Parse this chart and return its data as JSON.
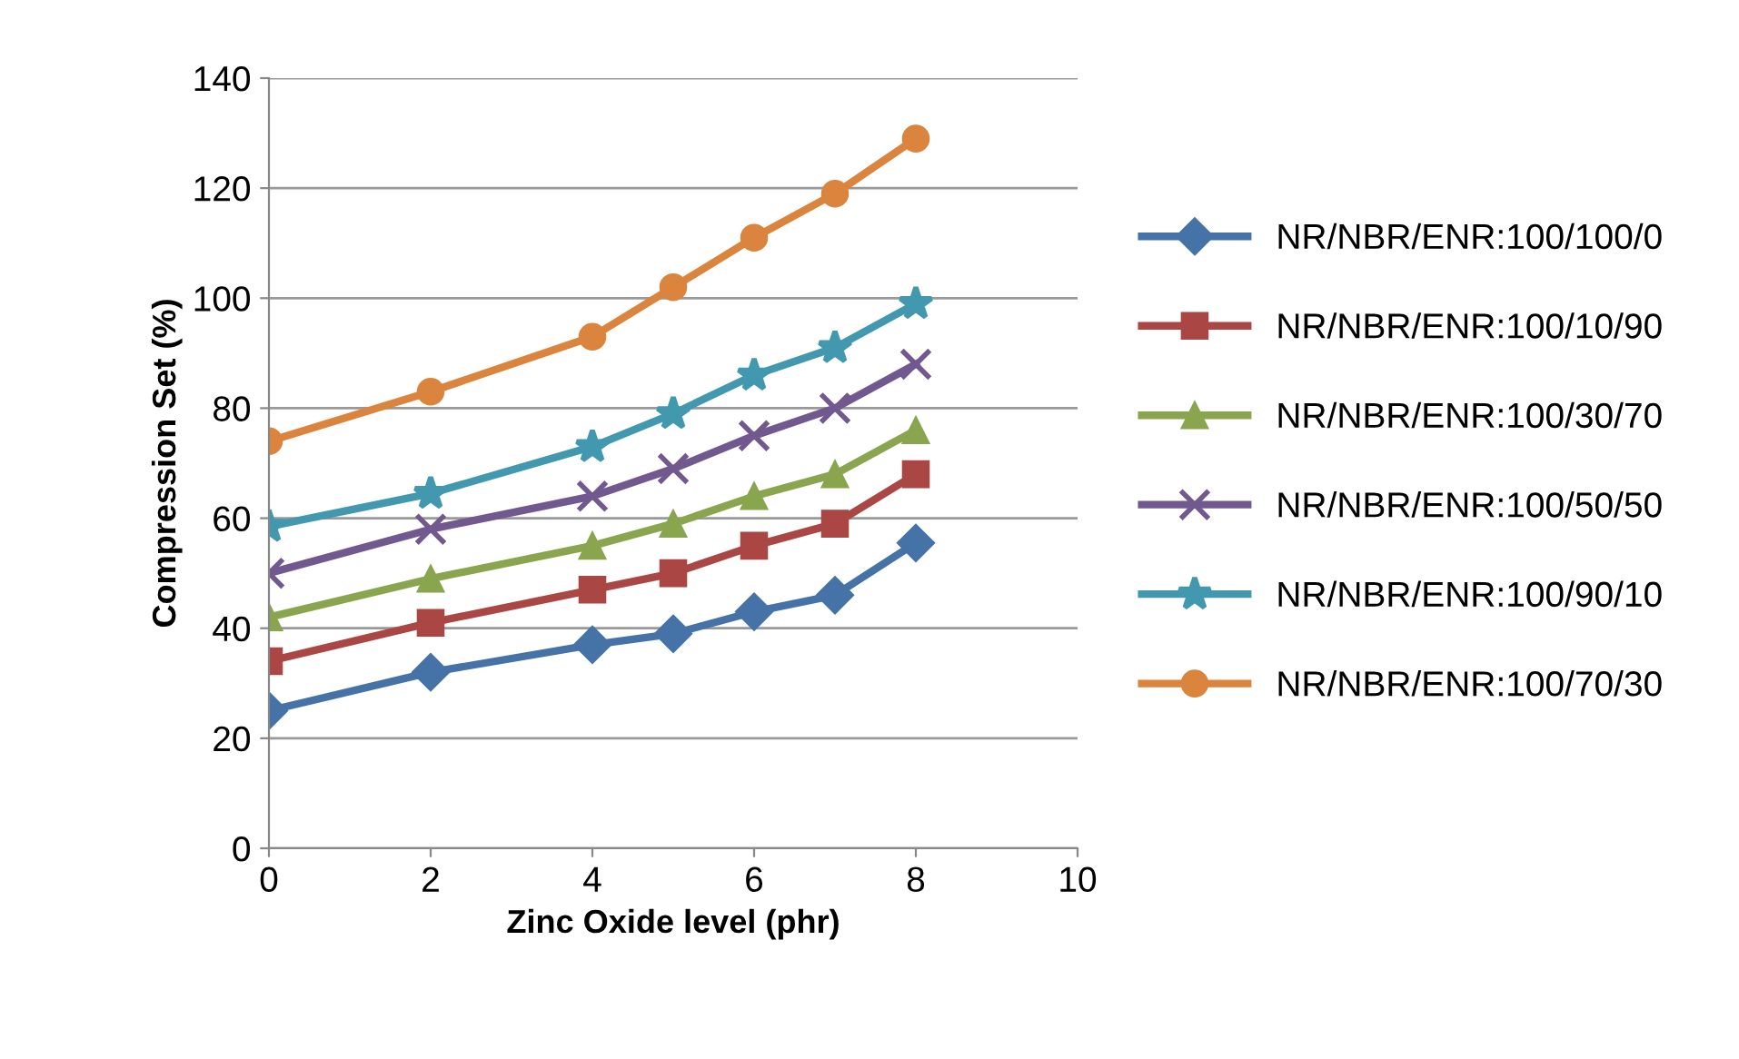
{
  "chart_data": {
    "type": "line",
    "xlabel": "Zinc Oxide level (phr)",
    "ylabel": "Compression Set (%)",
    "x": [
      0,
      2,
      4,
      5,
      6,
      7,
      8
    ],
    "xlim": [
      0,
      10
    ],
    "xticks": [
      0,
      2,
      4,
      6,
      8,
      10
    ],
    "ylim": [
      0,
      140
    ],
    "yticks": [
      0,
      20,
      40,
      60,
      80,
      100,
      120,
      140
    ],
    "grid": "y",
    "legend": "right",
    "line_style": "solid",
    "series": [
      {
        "name": "NR/NBR/ENR:100/100/0",
        "color": "#4572a7",
        "marker": "diamond",
        "values": [
          25,
          32,
          37,
          39,
          43,
          46,
          55.5
        ]
      },
      {
        "name": "NR/NBR/ENR:100/10/90",
        "color": "#aa4643",
        "marker": "square",
        "values": [
          34,
          41,
          47,
          50,
          55,
          59,
          68
        ]
      },
      {
        "name": "NR/NBR/ENR:100/30/70",
        "color": "#89a54e",
        "marker": "triangle",
        "values": [
          42,
          49,
          55,
          59,
          64,
          68,
          76
        ]
      },
      {
        "name": "NR/NBR/ENR:100/50/50",
        "color": "#71588f",
        "marker": "cross",
        "values": [
          50,
          58,
          64,
          69,
          75,
          80,
          88
        ]
      },
      {
        "name": "NR/NBR/ENR:100/90/10",
        "color": "#4198af",
        "marker": "star",
        "values": [
          58.5,
          64.5,
          73,
          79,
          86,
          91,
          99
        ]
      },
      {
        "name": "NR/NBR/ENR:100/70/30",
        "color": "#db843d",
        "marker": "circle",
        "values": [
          74,
          83,
          93,
          102,
          111,
          119,
          129
        ]
      }
    ]
  }
}
